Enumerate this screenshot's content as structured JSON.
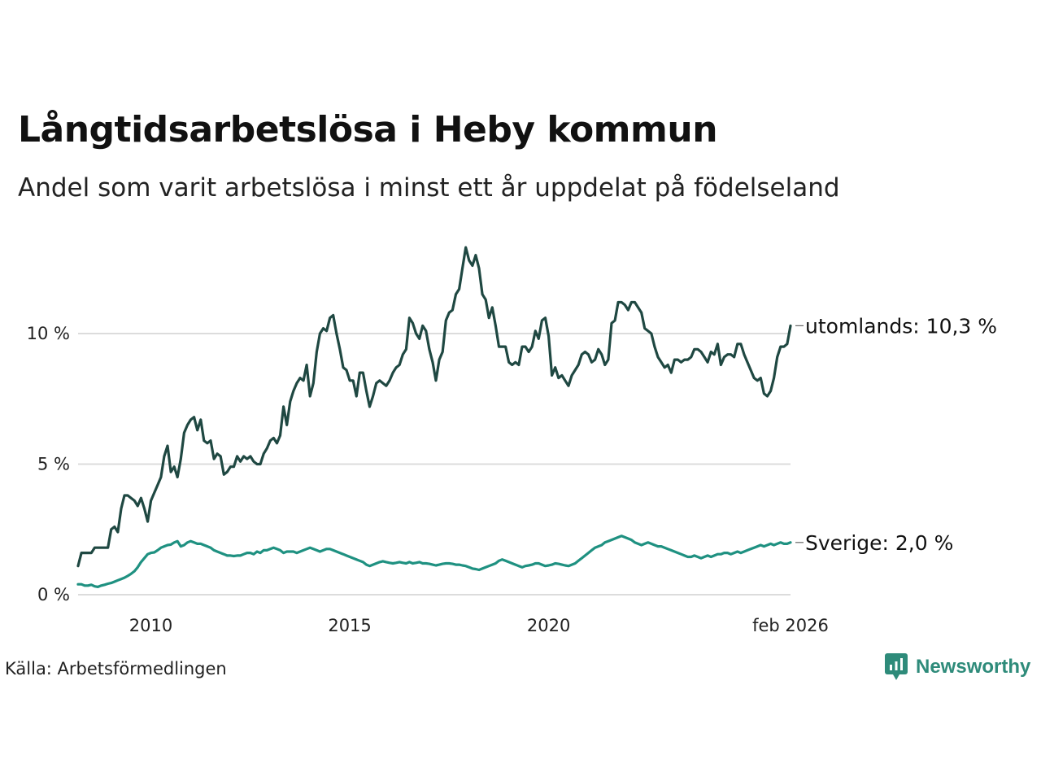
{
  "title": "Långtidsarbetslösa i Heby kommun",
  "subtitle": "Andel som varit arbetslösa i minst ett år uppdelat på födelseland",
  "source": "Källa: Arbetsförmedlingen",
  "brand": "Newsworthy",
  "colors": {
    "utomlands": "#1f4842",
    "sverige": "#1f9181",
    "grid": "#dcdcdc",
    "brand": "#2e8b7a"
  },
  "chart_data": {
    "type": "line",
    "x_start": 2008.17,
    "x_end": 2026.08,
    "ylim": [
      0,
      13.5
    ],
    "y_ticks": [
      {
        "value": 0,
        "label": "0 %"
      },
      {
        "value": 5,
        "label": "5 %"
      },
      {
        "value": 10,
        "label": "10 %"
      }
    ],
    "x_ticks": [
      {
        "value": 2010,
        "label": "2010"
      },
      {
        "value": 2015,
        "label": "2015"
      },
      {
        "value": 2020,
        "label": "2020"
      },
      {
        "value": 2026.08,
        "label": "feb 2026"
      }
    ],
    "series": [
      {
        "name": "utomlands",
        "label": "utomlands: 10,3 %",
        "color_key": "utomlands",
        "values": [
          1.1,
          1.6,
          1.6,
          1.6,
          1.6,
          1.8,
          1.8,
          1.8,
          1.8,
          1.8,
          2.5,
          2.6,
          2.4,
          3.3,
          3.8,
          3.8,
          3.7,
          3.6,
          3.4,
          3.7,
          3.3,
          2.8,
          3.6,
          3.9,
          4.2,
          4.5,
          5.3,
          5.7,
          4.7,
          4.9,
          4.5,
          5.2,
          6.2,
          6.5,
          6.7,
          6.8,
          6.3,
          6.7,
          5.9,
          5.8,
          5.9,
          5.2,
          5.4,
          5.3,
          4.6,
          4.7,
          4.9,
          4.9,
          5.3,
          5.1,
          5.3,
          5.2,
          5.3,
          5.1,
          5.0,
          5.0,
          5.4,
          5.6,
          5.9,
          6.0,
          5.8,
          6.1,
          7.2,
          6.5,
          7.4,
          7.8,
          8.1,
          8.3,
          8.2,
          8.8,
          7.6,
          8.1,
          9.3,
          10.0,
          10.2,
          10.1,
          10.6,
          10.7,
          10.0,
          9.4,
          8.7,
          8.6,
          8.2,
          8.2,
          7.6,
          8.5,
          8.5,
          7.8,
          7.2,
          7.6,
          8.1,
          8.2,
          8.1,
          8.0,
          8.2,
          8.5,
          8.7,
          8.8,
          9.2,
          9.4,
          10.6,
          10.4,
          10.0,
          9.8,
          10.3,
          10.1,
          9.4,
          8.9,
          8.2,
          9.0,
          9.3,
          10.5,
          10.8,
          10.9,
          11.5,
          11.7,
          12.5,
          13.3,
          12.8,
          12.6,
          13.0,
          12.5,
          11.5,
          11.3,
          10.6,
          11.0,
          10.3,
          9.5,
          9.5,
          9.5,
          8.9,
          8.8,
          8.9,
          8.8,
          9.5,
          9.5,
          9.3,
          9.5,
          10.1,
          9.8,
          10.5,
          10.6,
          9.9,
          8.4,
          8.7,
          8.3,
          8.4,
          8.2,
          8.0,
          8.4,
          8.6,
          8.8,
          9.2,
          9.3,
          9.2,
          8.9,
          9.0,
          9.4,
          9.2,
          8.8,
          9.0,
          10.4,
          10.5,
          11.2,
          11.2,
          11.1,
          10.9,
          11.2,
          11.2,
          11.0,
          10.8,
          10.2,
          10.1,
          10.0,
          9.5,
          9.1,
          8.9,
          8.7,
          8.8,
          8.5,
          9.0,
          9.0,
          8.9,
          9.0,
          9.0,
          9.1,
          9.4,
          9.4,
          9.3,
          9.1,
          8.9,
          9.3,
          9.2,
          9.6,
          8.8,
          9.1,
          9.2,
          9.2,
          9.1,
          9.6,
          9.6,
          9.2,
          8.9,
          8.6,
          8.3,
          8.2,
          8.3,
          7.7,
          7.6,
          7.8,
          8.3,
          9.1,
          9.5,
          9.5,
          9.6,
          10.3
        ]
      },
      {
        "name": "sverige",
        "label": "Sverige:  2,0 %",
        "color_key": "sverige",
        "values": [
          0.4,
          0.4,
          0.35,
          0.35,
          0.38,
          0.32,
          0.3,
          0.35,
          0.38,
          0.42,
          0.45,
          0.5,
          0.55,
          0.6,
          0.65,
          0.72,
          0.8,
          0.9,
          1.05,
          1.25,
          1.4,
          1.55,
          1.6,
          1.62,
          1.7,
          1.8,
          1.85,
          1.9,
          1.92,
          2.0,
          2.05,
          1.85,
          1.9,
          2.0,
          2.05,
          2.0,
          1.95,
          1.95,
          1.9,
          1.85,
          1.8,
          1.7,
          1.65,
          1.6,
          1.55,
          1.5,
          1.5,
          1.48,
          1.5,
          1.5,
          1.55,
          1.6,
          1.6,
          1.55,
          1.65,
          1.6,
          1.7,
          1.7,
          1.75,
          1.8,
          1.75,
          1.7,
          1.6,
          1.65,
          1.65,
          1.65,
          1.6,
          1.65,
          1.7,
          1.75,
          1.8,
          1.75,
          1.7,
          1.65,
          1.7,
          1.75,
          1.75,
          1.7,
          1.65,
          1.6,
          1.55,
          1.5,
          1.45,
          1.4,
          1.35,
          1.3,
          1.25,
          1.15,
          1.1,
          1.15,
          1.2,
          1.25,
          1.28,
          1.25,
          1.22,
          1.2,
          1.22,
          1.25,
          1.22,
          1.2,
          1.25,
          1.2,
          1.22,
          1.25,
          1.2,
          1.2,
          1.18,
          1.15,
          1.12,
          1.15,
          1.18,
          1.2,
          1.2,
          1.18,
          1.15,
          1.15,
          1.12,
          1.1,
          1.05,
          1.0,
          0.98,
          0.95,
          1.0,
          1.05,
          1.1,
          1.15,
          1.2,
          1.3,
          1.35,
          1.3,
          1.25,
          1.2,
          1.15,
          1.1,
          1.05,
          1.1,
          1.12,
          1.15,
          1.2,
          1.2,
          1.15,
          1.1,
          1.12,
          1.15,
          1.2,
          1.18,
          1.15,
          1.12,
          1.1,
          1.15,
          1.2,
          1.3,
          1.4,
          1.5,
          1.6,
          1.7,
          1.8,
          1.85,
          1.9,
          2.0,
          2.05,
          2.1,
          2.15,
          2.2,
          2.25,
          2.2,
          2.15,
          2.1,
          2.0,
          1.95,
          1.9,
          1.95,
          2.0,
          1.95,
          1.9,
          1.85,
          1.85,
          1.8,
          1.75,
          1.7,
          1.65,
          1.6,
          1.55,
          1.5,
          1.45,
          1.45,
          1.5,
          1.45,
          1.4,
          1.45,
          1.5,
          1.45,
          1.5,
          1.55,
          1.55,
          1.6,
          1.6,
          1.55,
          1.6,
          1.65,
          1.6,
          1.65,
          1.7,
          1.75,
          1.8,
          1.85,
          1.9,
          1.85,
          1.9,
          1.95,
          1.9,
          1.95,
          2.0,
          1.95,
          1.95,
          2.0
        ]
      }
    ]
  }
}
